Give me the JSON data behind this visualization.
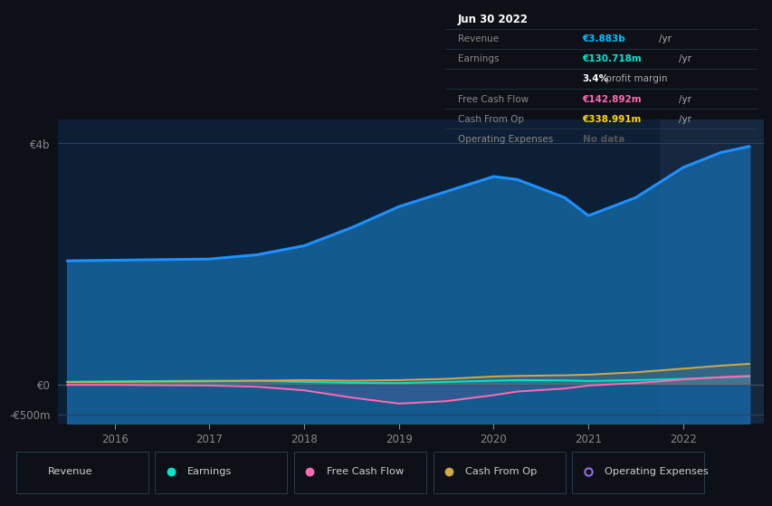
{
  "bg_color": "#0d1117",
  "chart_bg": "#0d1f35",
  "highlight_bg": "#162840",
  "title_date": "Jun 30 2022",
  "tooltip_rows": [
    {
      "label": "Revenue",
      "value": "€3.883b",
      "unit": "/yr",
      "val_color": "#00bfff",
      "label_color": "#888888"
    },
    {
      "label": "Earnings",
      "value": "€130.718m",
      "unit": "/yr",
      "val_color": "#00e5cc",
      "label_color": "#888888"
    },
    {
      "label": "",
      "value": "3.4%",
      "unit": " profit margin",
      "val_color": "#ffffff",
      "label_color": ""
    },
    {
      "label": "Free Cash Flow",
      "value": "€142.892m",
      "unit": "/yr",
      "val_color": "#ff69b4",
      "label_color": "#888888"
    },
    {
      "label": "Cash From Op",
      "value": "€338.991m",
      "unit": "/yr",
      "val_color": "#ffd700",
      "label_color": "#888888"
    },
    {
      "label": "Operating Expenses",
      "value": "No data",
      "unit": "",
      "val_color": "#555555",
      "label_color": "#888888"
    }
  ],
  "years": [
    2015.5,
    2016.0,
    2016.5,
    2017.0,
    2017.5,
    2018.0,
    2018.5,
    2019.0,
    2019.5,
    2020.0,
    2020.25,
    2020.75,
    2021.0,
    2021.5,
    2022.0,
    2022.4,
    2022.7
  ],
  "revenue": [
    2.05,
    2.06,
    2.07,
    2.08,
    2.15,
    2.3,
    2.6,
    2.95,
    3.2,
    3.45,
    3.4,
    3.1,
    2.8,
    3.1,
    3.6,
    3.85,
    3.95
  ],
  "earnings": [
    0.04,
    0.05,
    0.055,
    0.06,
    0.06,
    0.04,
    0.025,
    0.02,
    0.04,
    0.06,
    0.07,
    0.065,
    0.055,
    0.07,
    0.09,
    0.115,
    0.13
  ],
  "free_cash_flow": [
    -0.01,
    -0.01,
    -0.015,
    -0.02,
    -0.04,
    -0.1,
    -0.22,
    -0.32,
    -0.28,
    -0.18,
    -0.12,
    -0.07,
    -0.02,
    0.02,
    0.08,
    0.12,
    0.14
  ],
  "cash_from_op": [
    0.04,
    0.04,
    0.045,
    0.05,
    0.06,
    0.07,
    0.06,
    0.07,
    0.09,
    0.13,
    0.14,
    0.15,
    0.16,
    0.2,
    0.26,
    0.31,
    0.34
  ],
  "revenue_color": "#1e90ff",
  "earnings_color": "#00e5cc",
  "fcf_color": "#ff69b4",
  "cfop_color": "#d4a843",
  "opex_color": "#9370db",
  "ytick_labels": [
    "€4b",
    "€0",
    "-€500m"
  ],
  "ytick_vals": [
    4.0,
    0.0,
    -0.5
  ],
  "xlim": [
    2015.4,
    2022.85
  ],
  "ylim": [
    -0.65,
    4.4
  ],
  "xtick_years": [
    2016,
    2017,
    2018,
    2019,
    2020,
    2021,
    2022
  ],
  "highlight_x_start": 2021.75,
  "legend_items": [
    {
      "label": "Revenue",
      "color": "#1e90ff",
      "open": false
    },
    {
      "label": "Earnings",
      "color": "#00e5cc",
      "open": false
    },
    {
      "label": "Free Cash Flow",
      "color": "#ff69b4",
      "open": false
    },
    {
      "label": "Cash From Op",
      "color": "#d4a843",
      "open": false
    },
    {
      "label": "Operating Expenses",
      "color": "#9370db",
      "open": true
    }
  ]
}
